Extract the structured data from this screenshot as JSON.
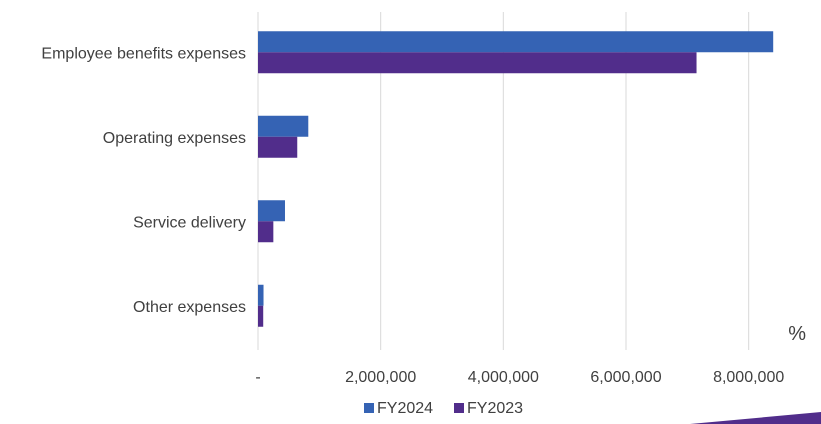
{
  "chart_data": {
    "type": "bar",
    "orientation": "horizontal",
    "categories": [
      "Employee benefits expenses",
      "Operating expenses",
      "Service delivery",
      "Other expenses"
    ],
    "series": [
      {
        "name": "FY2024",
        "values": [
          8400000,
          820000,
          440000,
          90000
        ],
        "color": "#3563b4"
      },
      {
        "name": "FY2023",
        "values": [
          7150000,
          640000,
          250000,
          85000
        ],
        "color": "#512d8b"
      }
    ],
    "xticks": [
      0,
      2000000,
      4000000,
      6000000,
      8000000
    ],
    "xtick_labels": [
      "-",
      "2,000,000",
      "4,000,000",
      "6,000,000",
      "8,000,000"
    ],
    "xlim": [
      0,
      9000000
    ],
    "grid": "vertical",
    "legend_position": "bottom",
    "unit_label": "%",
    "title": "",
    "xlabel": "",
    "ylabel": "",
    "colors": {
      "gridline": "#d9d9d9",
      "text": "#404040",
      "accent_shape": "#512d8b"
    }
  }
}
